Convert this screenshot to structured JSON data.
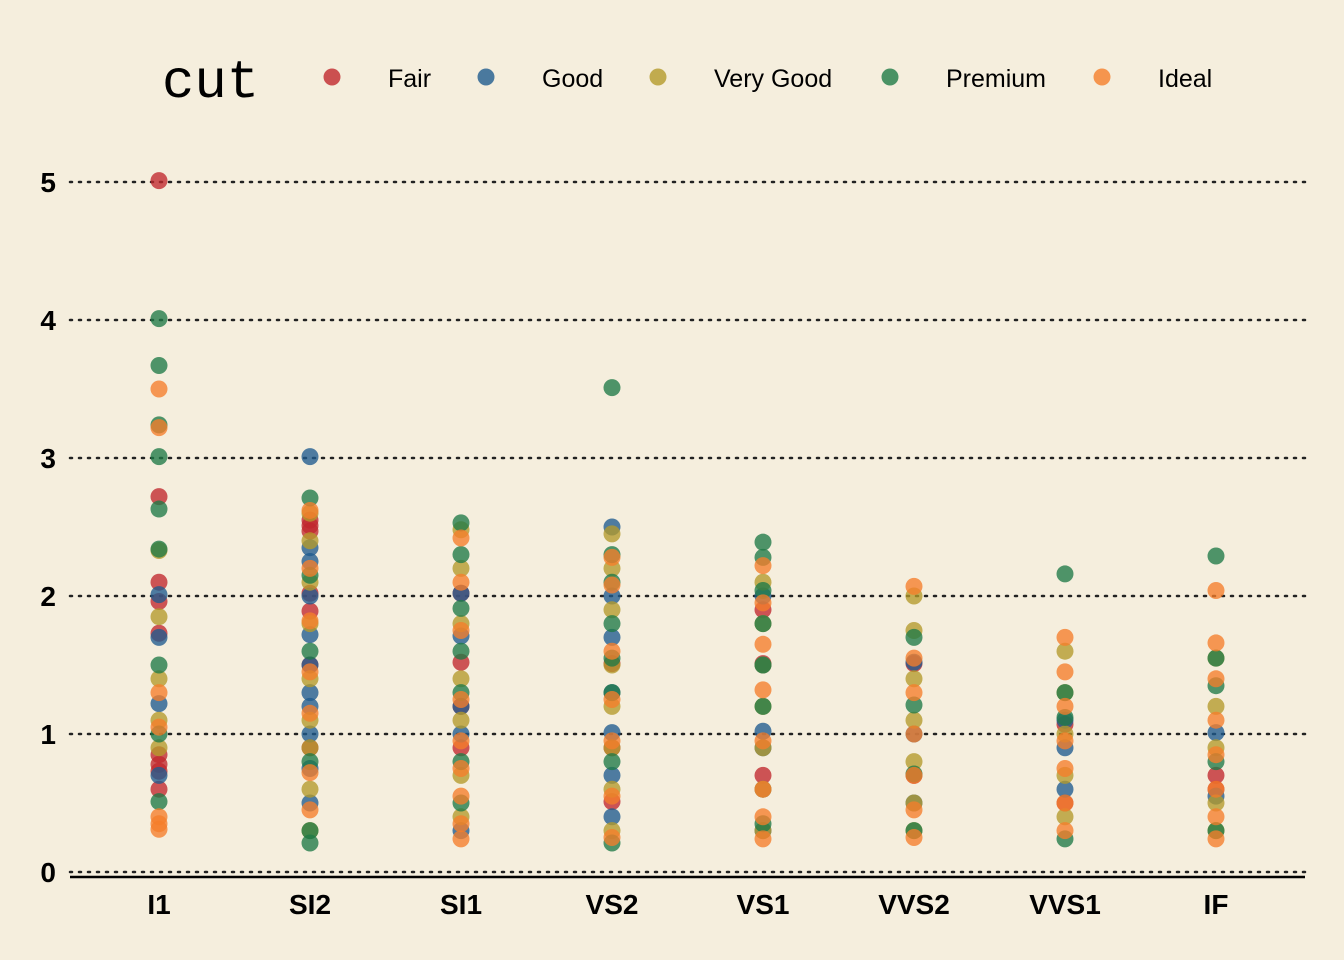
{
  "chart_data": {
    "type": "scatter",
    "title": "",
    "xlabel": "",
    "ylabel": "",
    "legend_title": "cut",
    "legend_position": "top",
    "grid": "horizontal dotted",
    "categories": [
      "I1",
      "SI2",
      "SI1",
      "VS2",
      "VS1",
      "VVS2",
      "VVS1",
      "IF"
    ],
    "ylim": [
      0,
      5.3
    ],
    "yticks": [
      "0",
      "1",
      "2",
      "3",
      "4",
      "5"
    ],
    "series": [
      {
        "name": "Fair",
        "color": "#c0282d",
        "points": [
          [
            "I1",
            5.01
          ],
          [
            "I1",
            2.72
          ],
          [
            "I1",
            2.1
          ],
          [
            "I1",
            1.96
          ],
          [
            "I1",
            1.73
          ],
          [
            "I1",
            0.85
          ],
          [
            "I1",
            0.78
          ],
          [
            "I1",
            0.73
          ],
          [
            "I1",
            0.6
          ],
          [
            "SI2",
            2.55
          ],
          [
            "SI2",
            2.51
          ],
          [
            "SI2",
            2.47
          ],
          [
            "SI2",
            1.89
          ],
          [
            "SI2",
            2.02
          ],
          [
            "SI2",
            1.5
          ],
          [
            "SI2",
            0.9
          ],
          [
            "SI1",
            2.02
          ],
          [
            "SI1",
            1.52
          ],
          [
            "SI1",
            1.2
          ],
          [
            "SI1",
            0.9
          ],
          [
            "VS2",
            1.51
          ],
          [
            "VS2",
            0.9
          ],
          [
            "VS2",
            0.51
          ],
          [
            "VS1",
            1.9
          ],
          [
            "VS1",
            1.51
          ],
          [
            "VS1",
            0.7
          ],
          [
            "VVS2",
            1.51
          ],
          [
            "VVS2",
            0.7
          ],
          [
            "VVS1",
            1.07
          ],
          [
            "VVS1",
            0.5
          ],
          [
            "IF",
            0.6
          ],
          [
            "IF",
            0.7
          ]
        ]
      },
      {
        "name": "Good",
        "color": "#1f5b8e",
        "points": [
          [
            "I1",
            2.01
          ],
          [
            "I1",
            1.7
          ],
          [
            "I1",
            1.22
          ],
          [
            "I1",
            0.7
          ],
          [
            "SI2",
            3.01
          ],
          [
            "SI2",
            2.35
          ],
          [
            "SI2",
            2.25
          ],
          [
            "SI2",
            2.0
          ],
          [
            "SI2",
            1.72
          ],
          [
            "SI2",
            1.5
          ],
          [
            "SI2",
            1.3
          ],
          [
            "SI2",
            1.2
          ],
          [
            "SI2",
            1.0
          ],
          [
            "SI2",
            0.75
          ],
          [
            "SI2",
            0.5
          ],
          [
            "SI1",
            2.02
          ],
          [
            "SI1",
            1.71
          ],
          [
            "SI1",
            1.2
          ],
          [
            "SI1",
            1.0
          ],
          [
            "SI1",
            0.3
          ],
          [
            "VS2",
            2.5
          ],
          [
            "VS2",
            2.0
          ],
          [
            "VS2",
            1.7
          ],
          [
            "VS2",
            1.3
          ],
          [
            "VS2",
            1.01
          ],
          [
            "VS2",
            0.7
          ],
          [
            "VS2",
            0.4
          ],
          [
            "VS1",
            2.0
          ],
          [
            "VS1",
            1.5
          ],
          [
            "VS1",
            1.02
          ],
          [
            "VS1",
            0.9
          ],
          [
            "VS1",
            0.6
          ],
          [
            "VS1",
            0.3
          ],
          [
            "VVS2",
            1.52
          ],
          [
            "VVS2",
            1.0
          ],
          [
            "VVS2",
            0.5
          ],
          [
            "VVS1",
            0.9
          ],
          [
            "VVS1",
            1.1
          ],
          [
            "VVS1",
            0.6
          ],
          [
            "IF",
            0.55
          ],
          [
            "IF",
            1.01
          ]
        ]
      },
      {
        "name": "Very Good",
        "color": "#b49a2a",
        "points": [
          [
            "I1",
            2.33
          ],
          [
            "I1",
            1.85
          ],
          [
            "I1",
            1.4
          ],
          [
            "I1",
            1.1
          ],
          [
            "I1",
            0.9
          ],
          [
            "SI2",
            2.6
          ],
          [
            "SI2",
            2.4
          ],
          [
            "SI2",
            2.1
          ],
          [
            "SI2",
            1.8
          ],
          [
            "SI2",
            1.4
          ],
          [
            "SI2",
            1.1
          ],
          [
            "SI2",
            0.9
          ],
          [
            "SI2",
            0.6
          ],
          [
            "SI2",
            0.3
          ],
          [
            "SI1",
            2.48
          ],
          [
            "SI1",
            2.2
          ],
          [
            "SI1",
            1.8
          ],
          [
            "SI1",
            1.4
          ],
          [
            "SI1",
            1.1
          ],
          [
            "SI1",
            0.7
          ],
          [
            "SI1",
            0.4
          ],
          [
            "VS2",
            2.45
          ],
          [
            "VS2",
            2.2
          ],
          [
            "VS2",
            1.9
          ],
          [
            "VS2",
            1.5
          ],
          [
            "VS2",
            1.2
          ],
          [
            "VS2",
            0.9
          ],
          [
            "VS2",
            0.6
          ],
          [
            "VS2",
            0.3
          ],
          [
            "VS1",
            2.1
          ],
          [
            "VS1",
            1.8
          ],
          [
            "VS1",
            1.5
          ],
          [
            "VS1",
            1.2
          ],
          [
            "VS1",
            0.9
          ],
          [
            "VS1",
            0.6
          ],
          [
            "VS1",
            0.3
          ],
          [
            "VVS2",
            2.0
          ],
          [
            "VVS2",
            1.75
          ],
          [
            "VVS2",
            1.4
          ],
          [
            "VVS2",
            1.1
          ],
          [
            "VVS2",
            0.8
          ],
          [
            "VVS2",
            0.5
          ],
          [
            "VVS2",
            0.3
          ],
          [
            "VVS1",
            1.6
          ],
          [
            "VVS1",
            1.3
          ],
          [
            "VVS1",
            1.0
          ],
          [
            "VVS1",
            0.7
          ],
          [
            "VVS1",
            0.4
          ],
          [
            "IF",
            1.55
          ],
          [
            "IF",
            1.2
          ],
          [
            "IF",
            0.9
          ],
          [
            "IF",
            0.5
          ],
          [
            "IF",
            0.3
          ]
        ]
      },
      {
        "name": "Premium",
        "color": "#1f7a46",
        "points": [
          [
            "I1",
            4.01
          ],
          [
            "I1",
            3.67
          ],
          [
            "I1",
            3.24
          ],
          [
            "I1",
            3.01
          ],
          [
            "I1",
            2.63
          ],
          [
            "I1",
            2.34
          ],
          [
            "I1",
            1.5
          ],
          [
            "I1",
            1.0
          ],
          [
            "I1",
            0.51
          ],
          [
            "SI2",
            2.71
          ],
          [
            "SI2",
            2.15
          ],
          [
            "SI2",
            1.6
          ],
          [
            "SI2",
            0.8
          ],
          [
            "SI2",
            0.3
          ],
          [
            "SI2",
            0.21
          ],
          [
            "SI1",
            2.53
          ],
          [
            "SI1",
            2.3
          ],
          [
            "SI1",
            1.91
          ],
          [
            "SI1",
            1.6
          ],
          [
            "SI1",
            1.3
          ],
          [
            "SI1",
            0.8
          ],
          [
            "SI1",
            0.5
          ],
          [
            "VS2",
            3.51
          ],
          [
            "VS2",
            2.3
          ],
          [
            "VS2",
            2.1
          ],
          [
            "VS2",
            1.8
          ],
          [
            "VS2",
            1.55
          ],
          [
            "VS2",
            1.3
          ],
          [
            "VS2",
            0.8
          ],
          [
            "VS2",
            0.21
          ],
          [
            "VS1",
            2.39
          ],
          [
            "VS1",
            2.28
          ],
          [
            "VS1",
            2.04
          ],
          [
            "VS1",
            1.8
          ],
          [
            "VS1",
            1.5
          ],
          [
            "VS1",
            1.2
          ],
          [
            "VS1",
            0.35
          ],
          [
            "VVS2",
            1.7
          ],
          [
            "VVS2",
            1.21
          ],
          [
            "VVS2",
            0.71
          ],
          [
            "VVS2",
            0.3
          ],
          [
            "VVS1",
            2.16
          ],
          [
            "VVS1",
            1.3
          ],
          [
            "VVS1",
            1.12
          ],
          [
            "VVS1",
            0.24
          ],
          [
            "IF",
            2.29
          ],
          [
            "IF",
            1.55
          ],
          [
            "IF",
            1.35
          ],
          [
            "IF",
            0.8
          ],
          [
            "IF",
            0.3
          ]
        ]
      },
      {
        "name": "Ideal",
        "color": "#f57e2a",
        "points": [
          [
            "I1",
            3.5
          ],
          [
            "I1",
            3.22
          ],
          [
            "I1",
            1.3
          ],
          [
            "I1",
            1.05
          ],
          [
            "I1",
            0.4
          ],
          [
            "I1",
            0.35
          ],
          [
            "I1",
            0.31
          ],
          [
            "SI2",
            2.62
          ],
          [
            "SI2",
            2.2
          ],
          [
            "SI2",
            1.82
          ],
          [
            "SI2",
            1.45
          ],
          [
            "SI2",
            1.15
          ],
          [
            "SI2",
            0.72
          ],
          [
            "SI2",
            0.45
          ],
          [
            "SI1",
            2.42
          ],
          [
            "SI1",
            2.1
          ],
          [
            "SI1",
            1.75
          ],
          [
            "SI1",
            1.25
          ],
          [
            "SI1",
            0.95
          ],
          [
            "SI1",
            0.75
          ],
          [
            "SI1",
            0.55
          ],
          [
            "SI1",
            0.35
          ],
          [
            "SI1",
            0.24
          ],
          [
            "VS2",
            2.28
          ],
          [
            "VS2",
            2.08
          ],
          [
            "VS2",
            1.6
          ],
          [
            "VS2",
            1.25
          ],
          [
            "VS2",
            0.95
          ],
          [
            "VS2",
            0.55
          ],
          [
            "VS2",
            0.25
          ],
          [
            "VS1",
            2.22
          ],
          [
            "VS1",
            1.95
          ],
          [
            "VS1",
            1.65
          ],
          [
            "VS1",
            1.32
          ],
          [
            "VS1",
            0.95
          ],
          [
            "VS1",
            0.6
          ],
          [
            "VS1",
            0.4
          ],
          [
            "VS1",
            0.24
          ],
          [
            "VVS2",
            2.07
          ],
          [
            "VVS2",
            1.55
          ],
          [
            "VVS2",
            1.3
          ],
          [
            "VVS2",
            1.0
          ],
          [
            "VVS2",
            0.7
          ],
          [
            "VVS2",
            0.45
          ],
          [
            "VVS2",
            0.25
          ],
          [
            "VVS1",
            1.7
          ],
          [
            "VVS1",
            1.45
          ],
          [
            "VVS1",
            1.2
          ],
          [
            "VVS1",
            0.95
          ],
          [
            "VVS1",
            0.75
          ],
          [
            "VVS1",
            0.5
          ],
          [
            "VVS1",
            0.3
          ],
          [
            "IF",
            2.04
          ],
          [
            "IF",
            1.66
          ],
          [
            "IF",
            1.4
          ],
          [
            "IF",
            1.1
          ],
          [
            "IF",
            0.85
          ],
          [
            "IF",
            0.6
          ],
          [
            "IF",
            0.4
          ],
          [
            "IF",
            0.24
          ]
        ]
      }
    ]
  }
}
